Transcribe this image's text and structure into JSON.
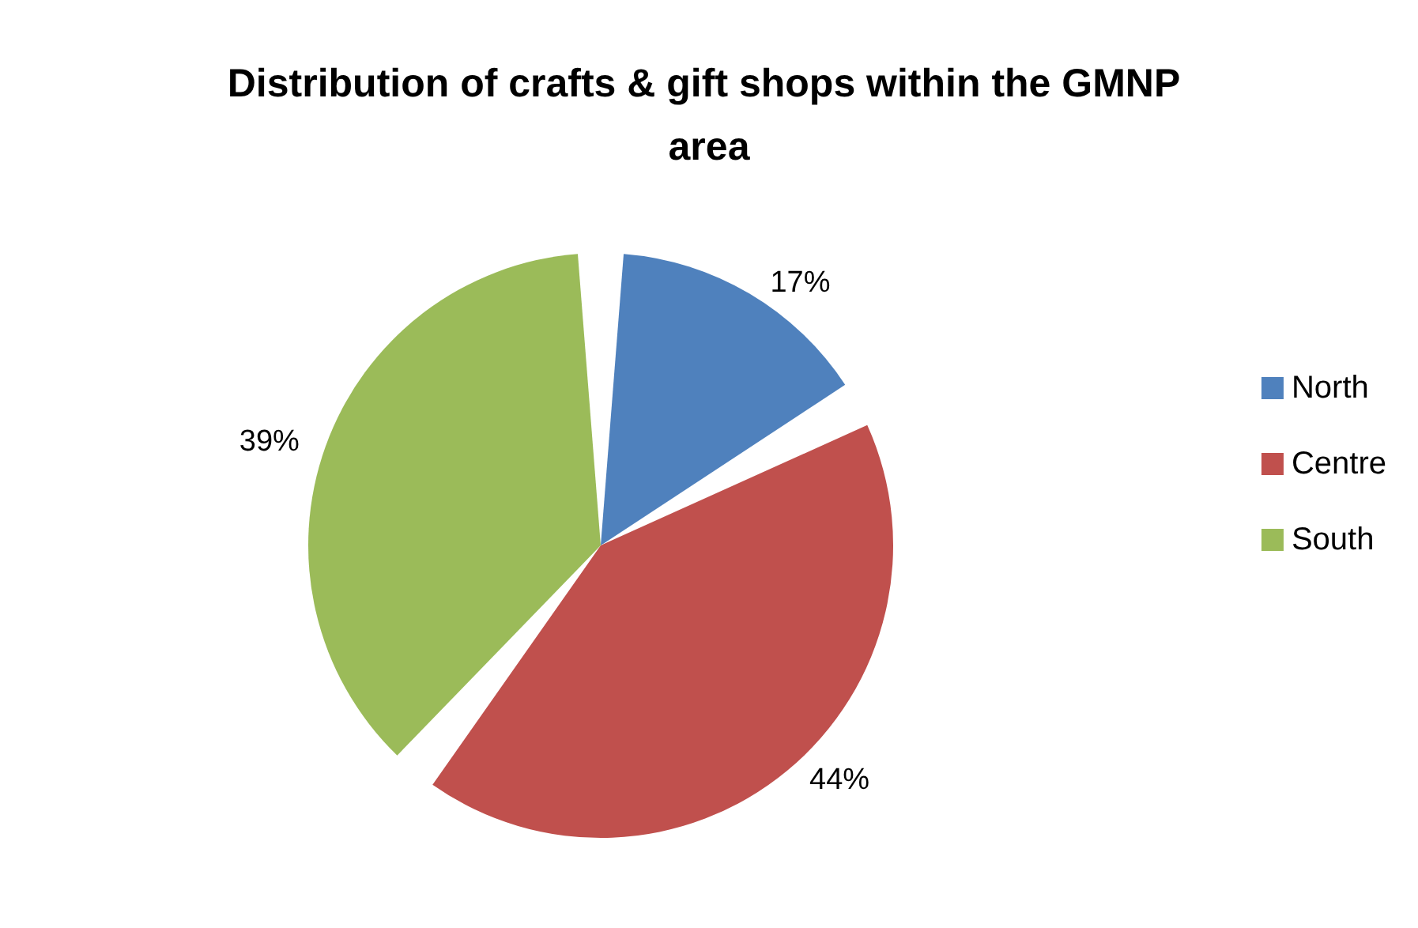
{
  "chart_data": {
    "type": "pie",
    "title": "Distribution of crafts & gift shops within the GMNP area",
    "categories": [
      "North",
      "Centre",
      "South"
    ],
    "values": [
      17,
      44,
      39
    ],
    "colors": [
      "#4f81bd",
      "#c0504d",
      "#9bbb59"
    ],
    "value_labels": [
      "17%",
      "44%",
      "39%"
    ],
    "legend": "right"
  }
}
